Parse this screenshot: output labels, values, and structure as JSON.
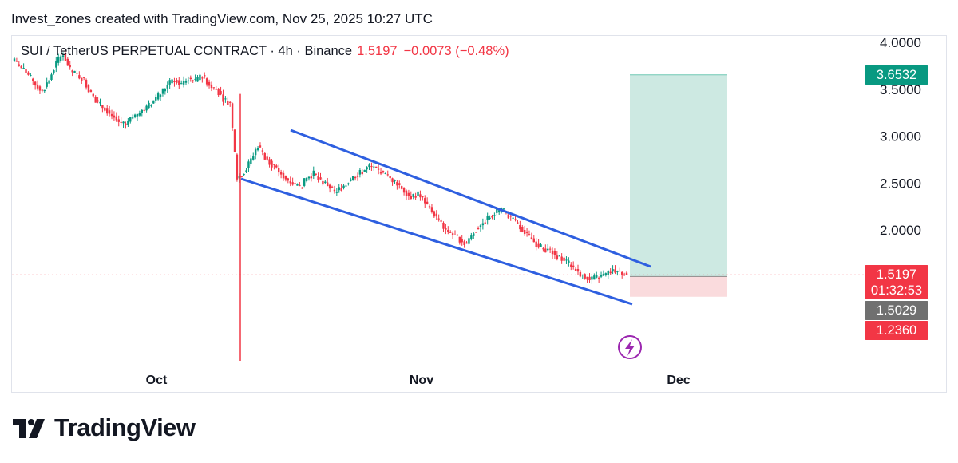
{
  "header": {
    "caption": "Invest_zones created with TradingView.com, Nov 25, 2025 10:27 UTC"
  },
  "symbol": {
    "name": "SUI / TetherUS PERPETUAL CONTRACT · 4h · Binance",
    "last": "1.5197",
    "change": "−0.0073 (−0.48%)"
  },
  "footer": {
    "brand": "TradingView"
  },
  "colors": {
    "up": "#089981",
    "down": "#f23645",
    "channel": "#2e5fe0",
    "target_zone": "#cde9e2",
    "stop_zone": "#fadbdd",
    "target_tag": "#089981",
    "stop_tag": "#f23645",
    "entry_tag": "#707070",
    "alert_icon": "#9c27b0"
  },
  "chart_data": {
    "type": "candlestick",
    "title": "SUI / TetherUS PERPETUAL CONTRACT · 4h · Binance",
    "ylim": [
      0.6,
      4.1
    ],
    "y_ticks": [
      "4.0000",
      "3.5000",
      "3.0000",
      "2.5000",
      "2.0000"
    ],
    "x_ticks": [
      "Oct",
      "Nov",
      "Dec"
    ],
    "timeframe": "4h",
    "approx_closes": [
      3.8,
      3.72,
      3.65,
      3.55,
      3.48,
      3.6,
      3.78,
      3.88,
      3.7,
      3.65,
      3.6,
      3.45,
      3.35,
      3.3,
      3.22,
      3.15,
      3.12,
      3.2,
      3.25,
      3.3,
      3.38,
      3.45,
      3.55,
      3.6,
      3.55,
      3.62,
      3.58,
      3.65,
      3.55,
      3.5,
      3.4,
      3.35,
      2.55,
      2.62,
      2.75,
      2.9,
      2.78,
      2.7,
      2.62,
      2.55,
      2.5,
      2.45,
      2.55,
      2.6,
      2.52,
      2.48,
      2.4,
      2.45,
      2.52,
      2.58,
      2.62,
      2.68,
      2.65,
      2.6,
      2.55,
      2.5,
      2.42,
      2.35,
      2.38,
      2.3,
      2.2,
      2.1,
      2.0,
      1.95,
      1.9,
      1.85,
      1.98,
      2.05,
      2.12,
      2.18,
      2.22,
      2.15,
      2.08,
      2.0,
      1.92,
      1.85,
      1.8,
      1.78,
      1.72,
      1.68,
      1.62,
      1.55,
      1.5,
      1.47,
      1.5,
      1.52,
      1.58,
      1.55,
      1.52
    ],
    "last_price": 1.5197,
    "countdown": "01:32:53",
    "annotations": {
      "target": 3.6532,
      "entry": 1.5029,
      "stop": 1.236,
      "labels": {
        "target": "3.6532",
        "last": "1.5197",
        "countdown": "01:32:53",
        "entry": "1.5029",
        "stop": "1.2360"
      }
    },
    "channel": {
      "upper": [
        [
          0.298,
          3.05
        ],
        [
          0.843,
          1.6
        ]
      ],
      "lower": [
        [
          0.184,
          2.55
        ],
        [
          0.833,
          1.38
        ]
      ]
    }
  }
}
